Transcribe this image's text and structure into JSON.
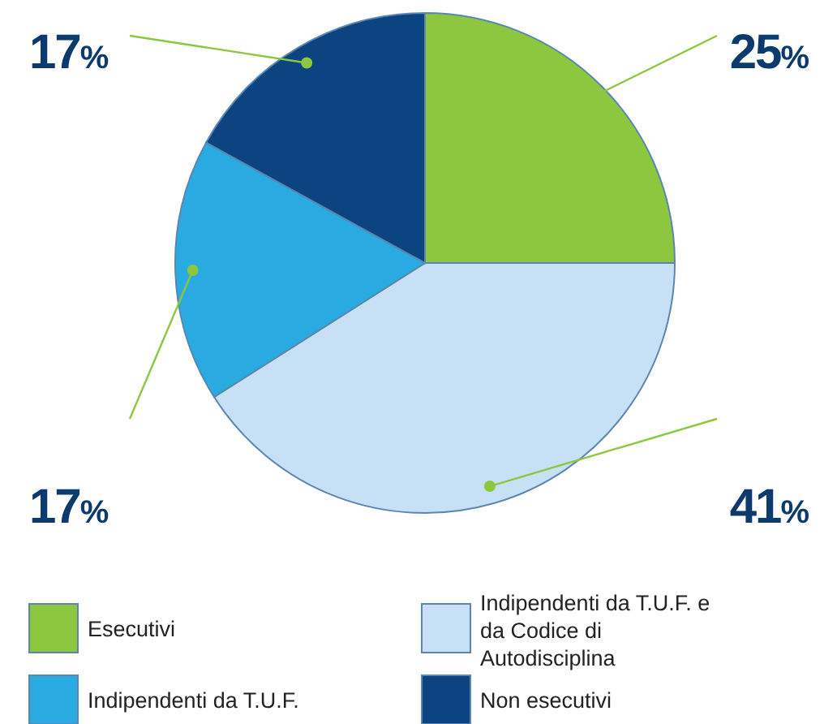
{
  "chart_data": {
    "type": "pie",
    "categories": [
      "Esecutivi",
      "Indipendenti da T.U.F. e da Codice di Autodisciplina",
      "Indipendenti da T.U.F.",
      "Non esecutivi"
    ],
    "values": [
      25,
      41,
      17,
      17
    ],
    "colors": [
      "#8dc63f",
      "#c8e0f5",
      "#29abe2",
      "#0b4480"
    ],
    "value_labels": [
      "25%",
      "41%",
      "17%",
      "17%"
    ],
    "legend": "bottom"
  }
}
